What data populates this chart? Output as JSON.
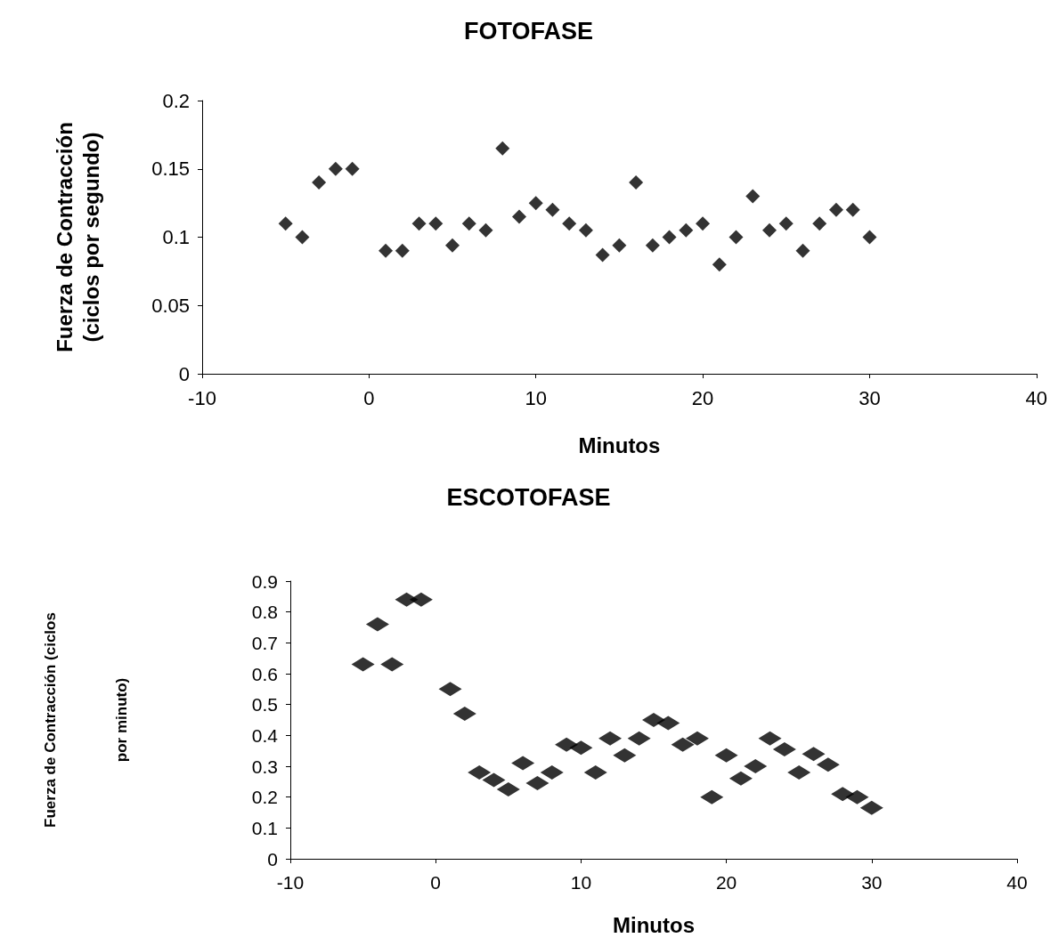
{
  "chart_data": [
    {
      "type": "scatter",
      "title": "FOTOFASE",
      "xlabel": "Minutos",
      "ylabel": "Fuerza de Contracción (ciclos por segundo)",
      "marker": "diamond",
      "grid": false,
      "xlim": [
        -10,
        40
      ],
      "xticks": [
        -10,
        0,
        10,
        20,
        30,
        40
      ],
      "ylim": [
        0,
        0.2
      ],
      "yticks": [
        0,
        0.05,
        0.1,
        0.15,
        0.2
      ],
      "series": [
        {
          "color": "#000000",
          "x": [
            -5,
            -4,
            -3,
            -2,
            -1,
            1,
            2,
            3,
            4,
            5,
            6,
            7,
            8,
            9,
            10,
            11,
            12,
            13,
            14,
            15,
            16,
            17,
            18,
            19,
            20,
            21,
            22,
            23,
            24,
            25,
            26,
            27,
            28,
            29,
            30
          ],
          "values": [
            0.11,
            0.1,
            0.14,
            0.15,
            0.15,
            0.09,
            0.09,
            0.11,
            0.11,
            0.094,
            0.11,
            0.105,
            0.165,
            0.115,
            0.125,
            0.12,
            0.11,
            0.105,
            0.087,
            0.094,
            0.14,
            0.094,
            0.1,
            0.105,
            0.11,
            0.08,
            0.1,
            0.13,
            0.105,
            0.11,
            0.09,
            0.11,
            0.12,
            0.12,
            0.1
          ]
        }
      ]
    },
    {
      "type": "scatter",
      "title": "ESCOTOFASE",
      "xlabel": "Minutos",
      "ylabel": "Fuerza de Contracción (ciclos por minuto)",
      "marker": "diamond",
      "grid": false,
      "xlim": [
        -10,
        40
      ],
      "xticks": [
        -10,
        0,
        10,
        20,
        30,
        40
      ],
      "ylim": [
        0,
        0.9
      ],
      "yticks": [
        0,
        0.1,
        0.2,
        0.3,
        0.4,
        0.5,
        0.6,
        0.7,
        0.8,
        0.9
      ],
      "series": [
        {
          "color": "#000000",
          "x": [
            -5,
            -4,
            -3,
            -2,
            -1,
            1,
            2,
            3,
            4,
            5,
            6,
            7,
            8,
            9,
            10,
            11,
            12,
            13,
            14,
            15,
            16,
            17,
            18,
            19,
            20,
            21,
            22,
            23,
            24,
            25,
            26,
            27,
            28,
            29,
            30
          ],
          "values": [
            0.63,
            0.76,
            0.63,
            0.84,
            0.84,
            0.55,
            0.47,
            0.28,
            0.255,
            0.225,
            0.31,
            0.245,
            0.28,
            0.37,
            0.36,
            0.28,
            0.39,
            0.335,
            0.39,
            0.45,
            0.44,
            0.37,
            0.39,
            0.2,
            0.335,
            0.26,
            0.3,
            0.39,
            0.355,
            0.28,
            0.34,
            0.305,
            0.21,
            0.2,
            0.165
          ]
        }
      ]
    }
  ]
}
